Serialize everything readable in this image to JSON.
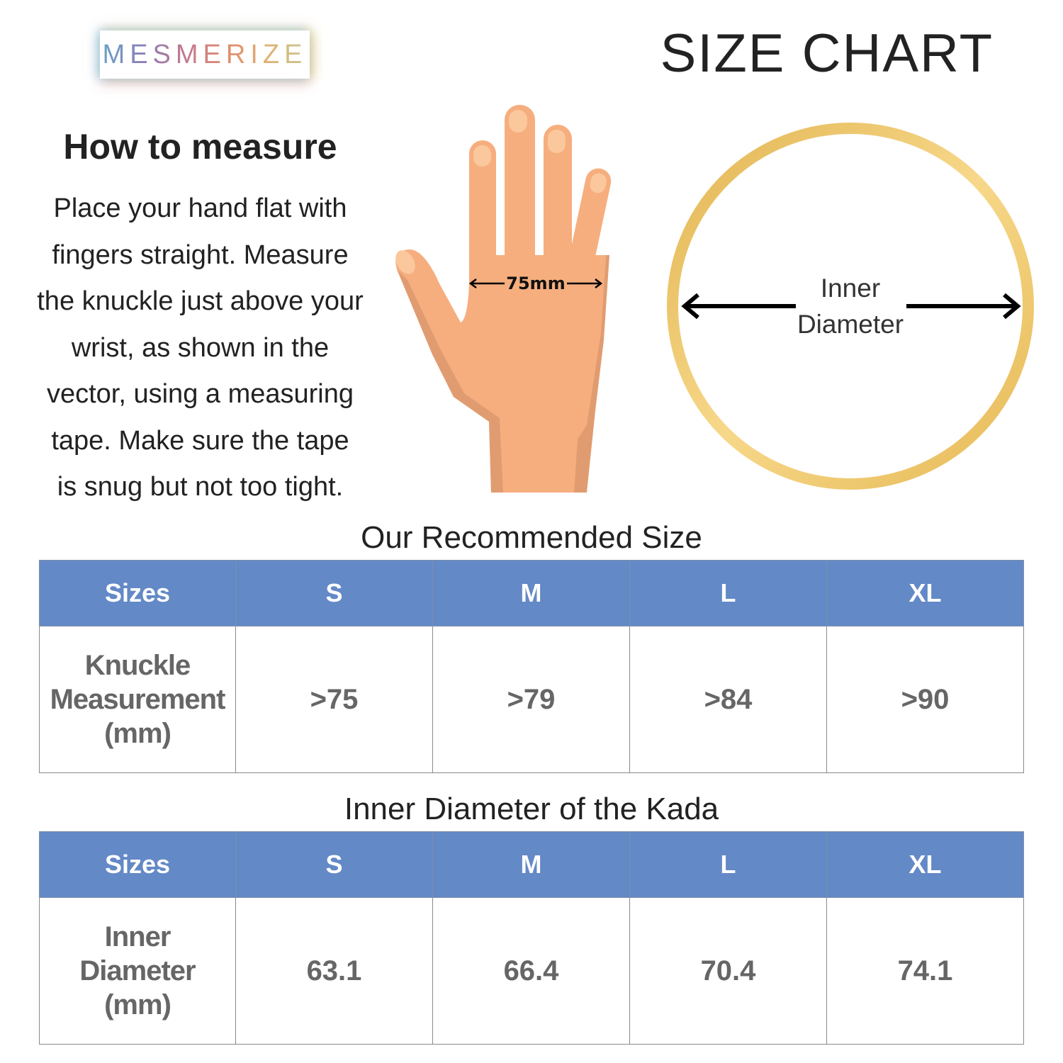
{
  "brand": {
    "logo_text": "MESMERIZE"
  },
  "title": "SIZE CHART",
  "how_to": {
    "heading": "How to measure",
    "lines": [
      "Place your hand flat with",
      "fingers straight. Measure",
      "the knuckle just above your",
      "wrist, as shown in the",
      "vector, using a measuring",
      "tape. Make sure the tape",
      "is snug but not too tight."
    ]
  },
  "hand_illustration": {
    "measurement_label": "75mm",
    "skin_color": "#f6ae7e",
    "shadow_color": "#e09c70"
  },
  "ring_illustration": {
    "label_line1": "Inner",
    "label_line2": "Diameter",
    "ring_color": "#e8c060"
  },
  "tables": [
    {
      "heading": "Our Recommended Size",
      "columns": [
        "Sizes",
        "S",
        "M",
        "L",
        "XL"
      ],
      "row_label": [
        "Knuckle",
        "Measurement",
        "(mm)"
      ],
      "values": [
        ">75",
        ">79",
        ">84",
        ">90"
      ]
    },
    {
      "heading": "Inner Diameter of the Kada",
      "columns": [
        "Sizes",
        "S",
        "M",
        "L",
        "XL"
      ],
      "row_label": [
        "Inner",
        "Diameter",
        "(mm)"
      ],
      "values": [
        "63.1",
        "66.4",
        "70.4",
        "74.1"
      ]
    }
  ],
  "colors": {
    "header_bg": "#6389c6",
    "header_text": "#ffffff",
    "cell_text": "#666666"
  }
}
